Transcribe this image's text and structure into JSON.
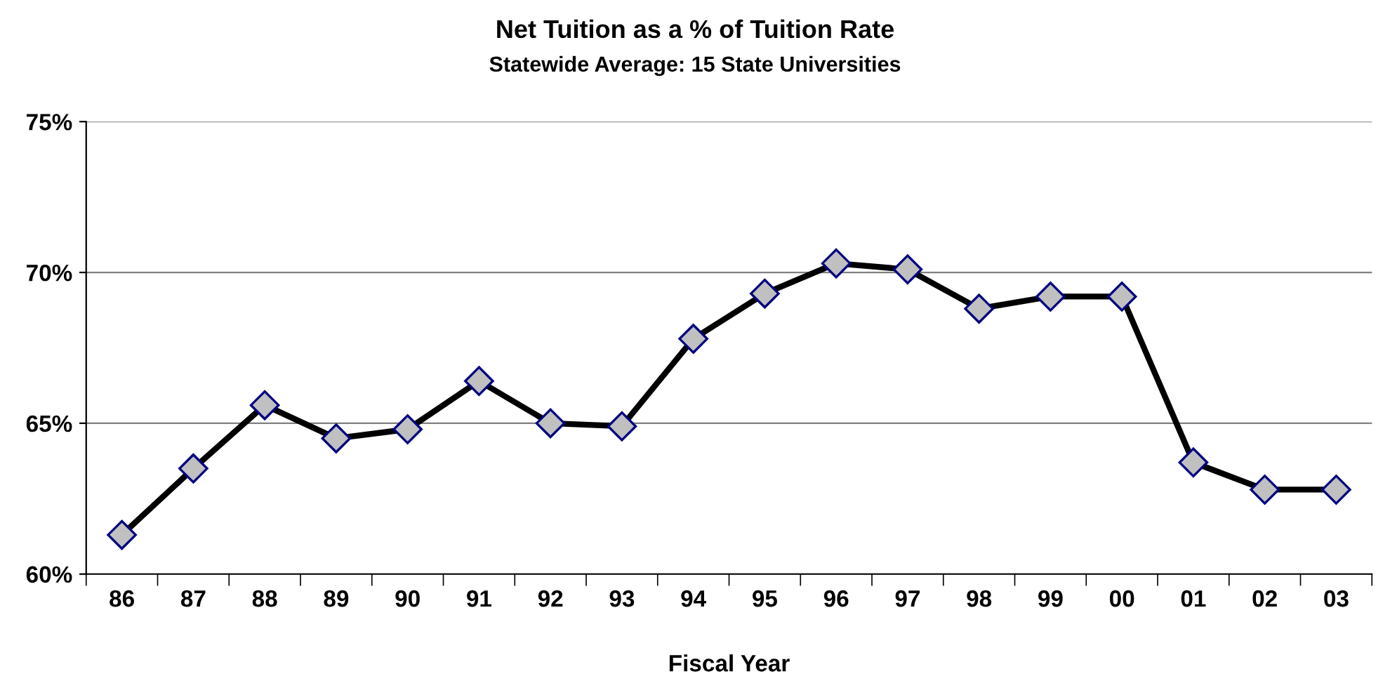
{
  "chart_data": {
    "type": "line",
    "title": "Net Tuition as a % of Tuition Rate",
    "subtitle": "Statewide Average: 15 State Universities",
    "xlabel": "Fiscal Year",
    "categories": [
      "86",
      "87",
      "88",
      "89",
      "90",
      "91",
      "92",
      "93",
      "94",
      "95",
      "96",
      "97",
      "98",
      "99",
      "00",
      "01",
      "02",
      "03"
    ],
    "series": [
      {
        "color": "#000000",
        "values": [
          61.3,
          63.5,
          65.6,
          64.5,
          64.8,
          66.4,
          65.0,
          64.9,
          67.8,
          69.3,
          70.3,
          70.1,
          68.8,
          69.2,
          69.2,
          63.7,
          62.8,
          62.8
        ]
      }
    ],
    "ylim": [
      60,
      75
    ],
    "yticks": [
      {
        "value": 60,
        "label": "60%"
      },
      {
        "value": 65,
        "label": "65%"
      },
      {
        "value": 70,
        "label": "70%"
      },
      {
        "value": 75,
        "label": "75%"
      }
    ],
    "grid": "y",
    "marker": "diamond",
    "line_style": "solid",
    "legend": false
  }
}
